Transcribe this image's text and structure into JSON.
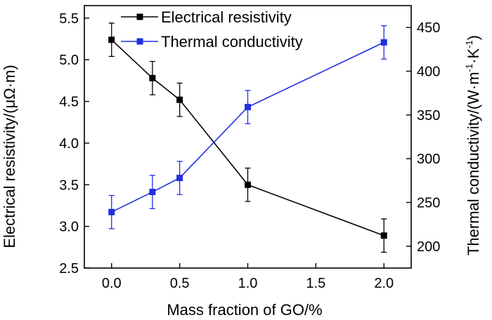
{
  "chart_data": {
    "type": "line",
    "title": "",
    "xlabel": "Mass fraction of GO/%",
    "ylabel_left": "Electrical resistivity/(μΩ·m)",
    "ylabel_right_base": "Thermal conductivity/(W·m",
    "ylabel_right_sup1": "-1",
    "ylabel_right_mid": "·K",
    "ylabel_right_sup2": "-1",
    "ylabel_right_end": ")",
    "xlim": [
      -0.2,
      2.2
    ],
    "ylim_left": [
      2.5,
      5.65
    ],
    "ylim_right": [
      175,
      475
    ],
    "x_ticks": [
      "0.0",
      "0.5",
      "1.0",
      "1.5",
      "2.0"
    ],
    "x_tick_values": [
      0,
      0.5,
      1.0,
      1.5,
      2.0
    ],
    "y_left_ticks": [
      "2.5",
      "3.0",
      "3.5",
      "4.0",
      "4.5",
      "5.0",
      "5.5"
    ],
    "y_left_tick_values": [
      2.5,
      3.0,
      3.5,
      4.0,
      4.5,
      5.0,
      5.5
    ],
    "y_right_ticks": [
      "200",
      "250",
      "300",
      "350",
      "400",
      "450"
    ],
    "y_right_tick_values": [
      200,
      250,
      300,
      350,
      400,
      450
    ],
    "legend_position": "top-center",
    "series": [
      {
        "name": "Electrical resistivity",
        "axis": "left",
        "color": "#000000",
        "x": [
          0,
          0.3,
          0.5,
          1.0,
          2.0
        ],
        "values": [
          5.24,
          4.78,
          4.52,
          3.5,
          2.89
        ],
        "error": [
          0.2,
          0.2,
          0.2,
          0.2,
          0.2
        ]
      },
      {
        "name": "Thermal conductivity",
        "axis": "right",
        "color": "#1f2fe0",
        "x": [
          0,
          0.3,
          0.5,
          1.0,
          2.0
        ],
        "values": [
          239,
          262,
          278,
          359,
          433
        ],
        "error": [
          19,
          19,
          19,
          19,
          19
        ]
      }
    ]
  }
}
